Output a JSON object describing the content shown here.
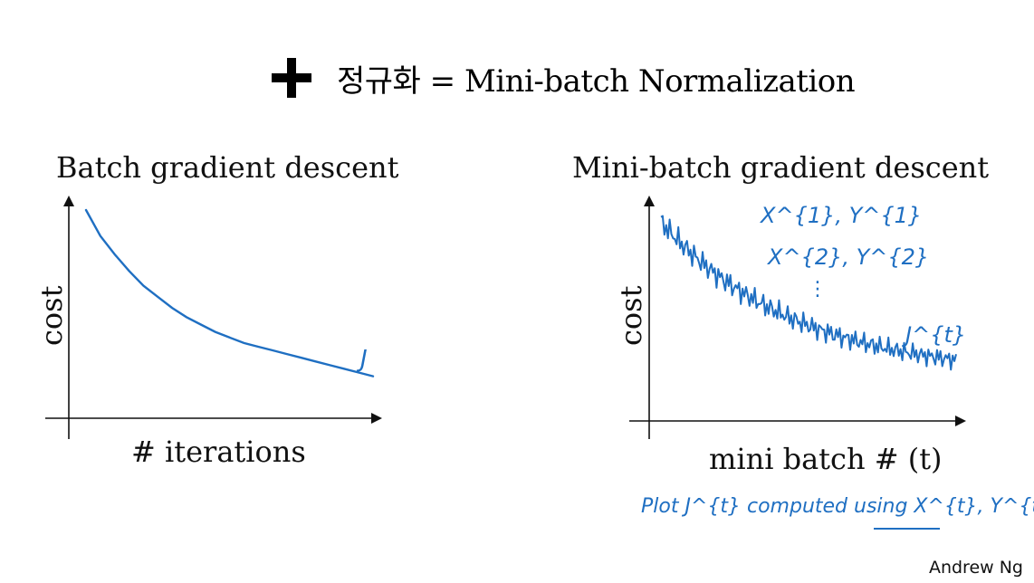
{
  "headline": {
    "text": "정규화 = Mini-batch Normalization"
  },
  "credit": "Andrew Ng",
  "colors": {
    "ink": "#1f6fc2",
    "axis": "#111111"
  },
  "chart_data": [
    {
      "type": "line",
      "title": "Batch gradient descent",
      "xlabel": "# iterations",
      "ylabel": "cost",
      "series": [
        {
          "name": "J",
          "trend": "smooth monotonic decrease",
          "x": [
            0,
            0.05,
            0.1,
            0.15,
            0.2,
            0.25,
            0.3,
            0.35,
            0.4,
            0.45,
            0.5,
            0.55,
            0.6,
            0.65,
            0.7,
            0.75,
            0.8,
            0.85,
            0.9,
            0.95,
            1.0
          ],
          "values": [
            1.0,
            0.86,
            0.76,
            0.67,
            0.59,
            0.53,
            0.47,
            0.42,
            0.38,
            0.34,
            0.31,
            0.28,
            0.26,
            0.24,
            0.22,
            0.2,
            0.18,
            0.16,
            0.14,
            0.12,
            0.1
          ]
        }
      ]
    },
    {
      "type": "line",
      "title": "Mini-batch gradient descent",
      "xlabel": "mini batch # (t)",
      "ylabel": "cost",
      "series": [
        {
          "name": "J^{t}",
          "trend": "noisy oscillating decrease"
        }
      ],
      "annotations": [
        "X^{1}, Y^{1}",
        "X^{2}, Y^{2}",
        "⋮",
        "J^{t}",
        "Plot J^{t} computed using X^{t}, Y^{t}"
      ]
    }
  ]
}
